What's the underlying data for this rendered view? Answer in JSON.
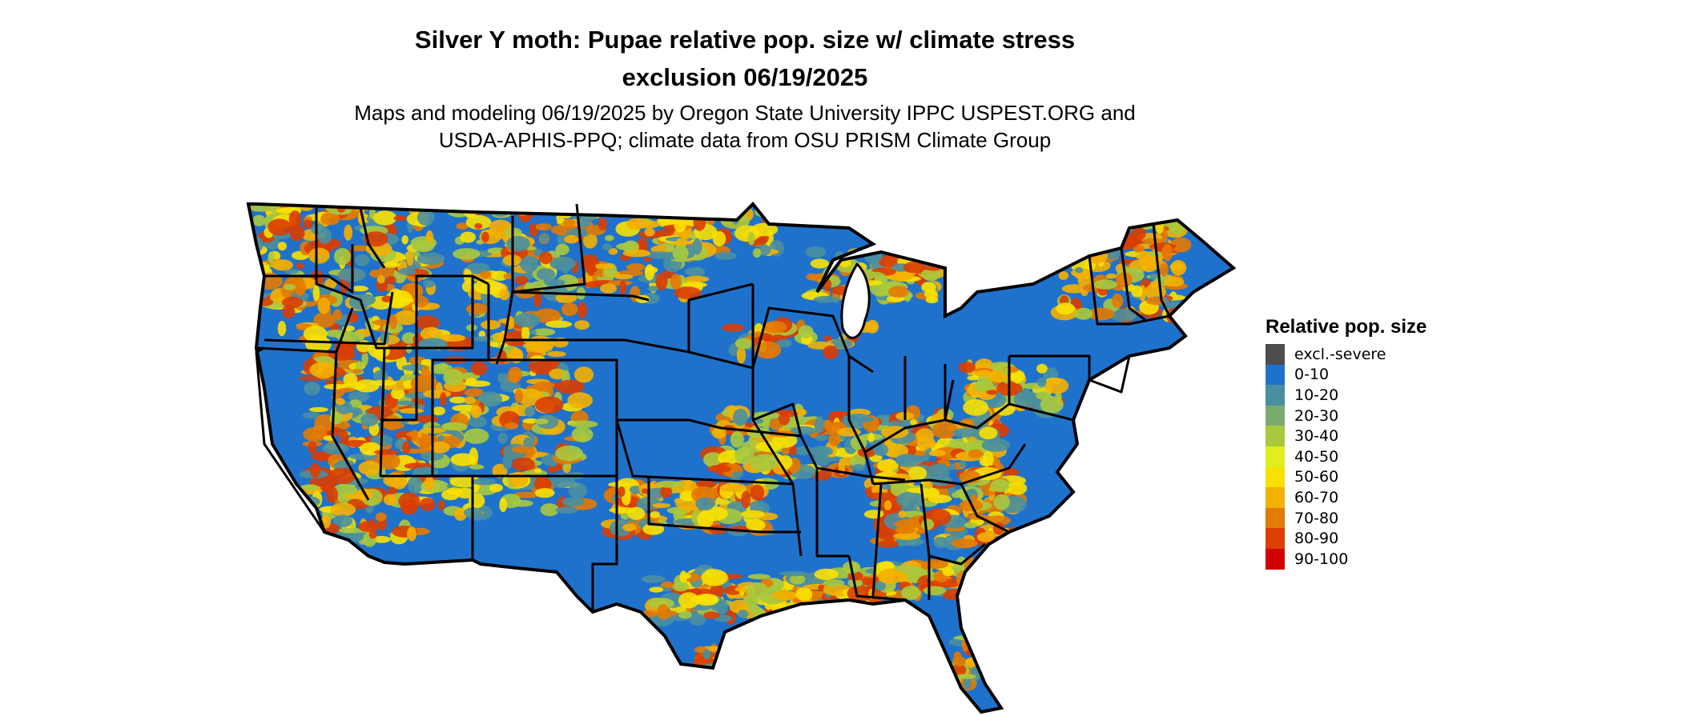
{
  "title": {
    "line1": "Silver Y moth: Pupae relative pop. size w/ climate stress",
    "line2": "exclusion 06/19/2025"
  },
  "subtitle": {
    "line1": "Maps and modeling 06/19/2025 by Oregon State University IPPC USPEST.ORG and",
    "line2": "USDA-APHIS-PPQ; climate data from OSU PRISM Climate Group"
  },
  "legend": {
    "title": "Relative pop. size",
    "items": [
      {
        "label": "excl.-severe",
        "color": "#4d4d4d"
      },
      {
        "label": "0-10",
        "color": "#1f72cc"
      },
      {
        "label": "10-20",
        "color": "#4a8fa0"
      },
      {
        "label": "20-30",
        "color": "#7aab6c"
      },
      {
        "label": "30-40",
        "color": "#a8c93e"
      },
      {
        "label": "40-50",
        "color": "#dfee1c"
      },
      {
        "label": "50-60",
        "color": "#f8e100"
      },
      {
        "label": "60-70",
        "color": "#f4b000"
      },
      {
        "label": "70-80",
        "color": "#e47a00"
      },
      {
        "label": "80-90",
        "color": "#dc3d00"
      },
      {
        "label": "90-100",
        "color": "#d20000"
      }
    ]
  },
  "map": {
    "region": "contiguous-us",
    "base_color": "#1f72cc",
    "border_color": "#000000",
    "hotspot_palette": [
      "#f8e100",
      "#f4b000",
      "#e47a00",
      "#dc3d00",
      "#a8c93e",
      "#4a8fa0"
    ]
  }
}
